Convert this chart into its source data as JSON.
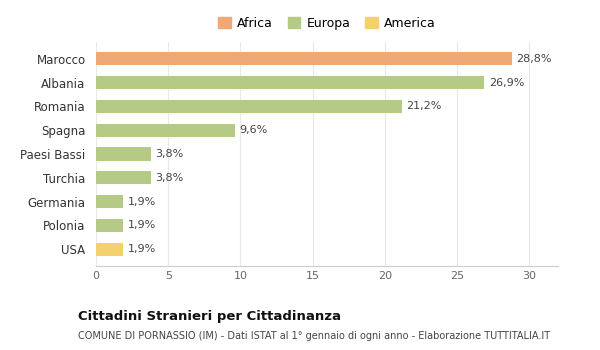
{
  "categories": [
    "USA",
    "Polonia",
    "Germania",
    "Turchia",
    "Paesi Bassi",
    "Spagna",
    "Romania",
    "Albania",
    "Marocco"
  ],
  "values": [
    1.9,
    1.9,
    1.9,
    3.8,
    3.8,
    9.6,
    21.2,
    26.9,
    28.8
  ],
  "colors": [
    "#f5d06e",
    "#b5cb85",
    "#b5cb85",
    "#b5cb85",
    "#b5cb85",
    "#b5cb85",
    "#b5cb85",
    "#b5cb85",
    "#f0a875"
  ],
  "labels": [
    "1,9%",
    "1,9%",
    "1,9%",
    "3,8%",
    "3,8%",
    "9,6%",
    "21,2%",
    "26,9%",
    "28,8%"
  ],
  "legend": [
    {
      "label": "Africa",
      "color": "#f0a875"
    },
    {
      "label": "Europa",
      "color": "#b5cb85"
    },
    {
      "label": "America",
      "color": "#f5d06e"
    }
  ],
  "title": "Cittadini Stranieri per Cittadinanza",
  "subtitle": "COMUNE DI PORNASSIO (IM) - Dati ISTAT al 1° gennaio di ogni anno - Elaborazione TUTTITALIA.IT",
  "xlim": [
    0,
    32
  ],
  "xticks": [
    0,
    5,
    10,
    15,
    20,
    25,
    30
  ],
  "background_color": "#ffffff",
  "grid_color": "#e8e8e8"
}
